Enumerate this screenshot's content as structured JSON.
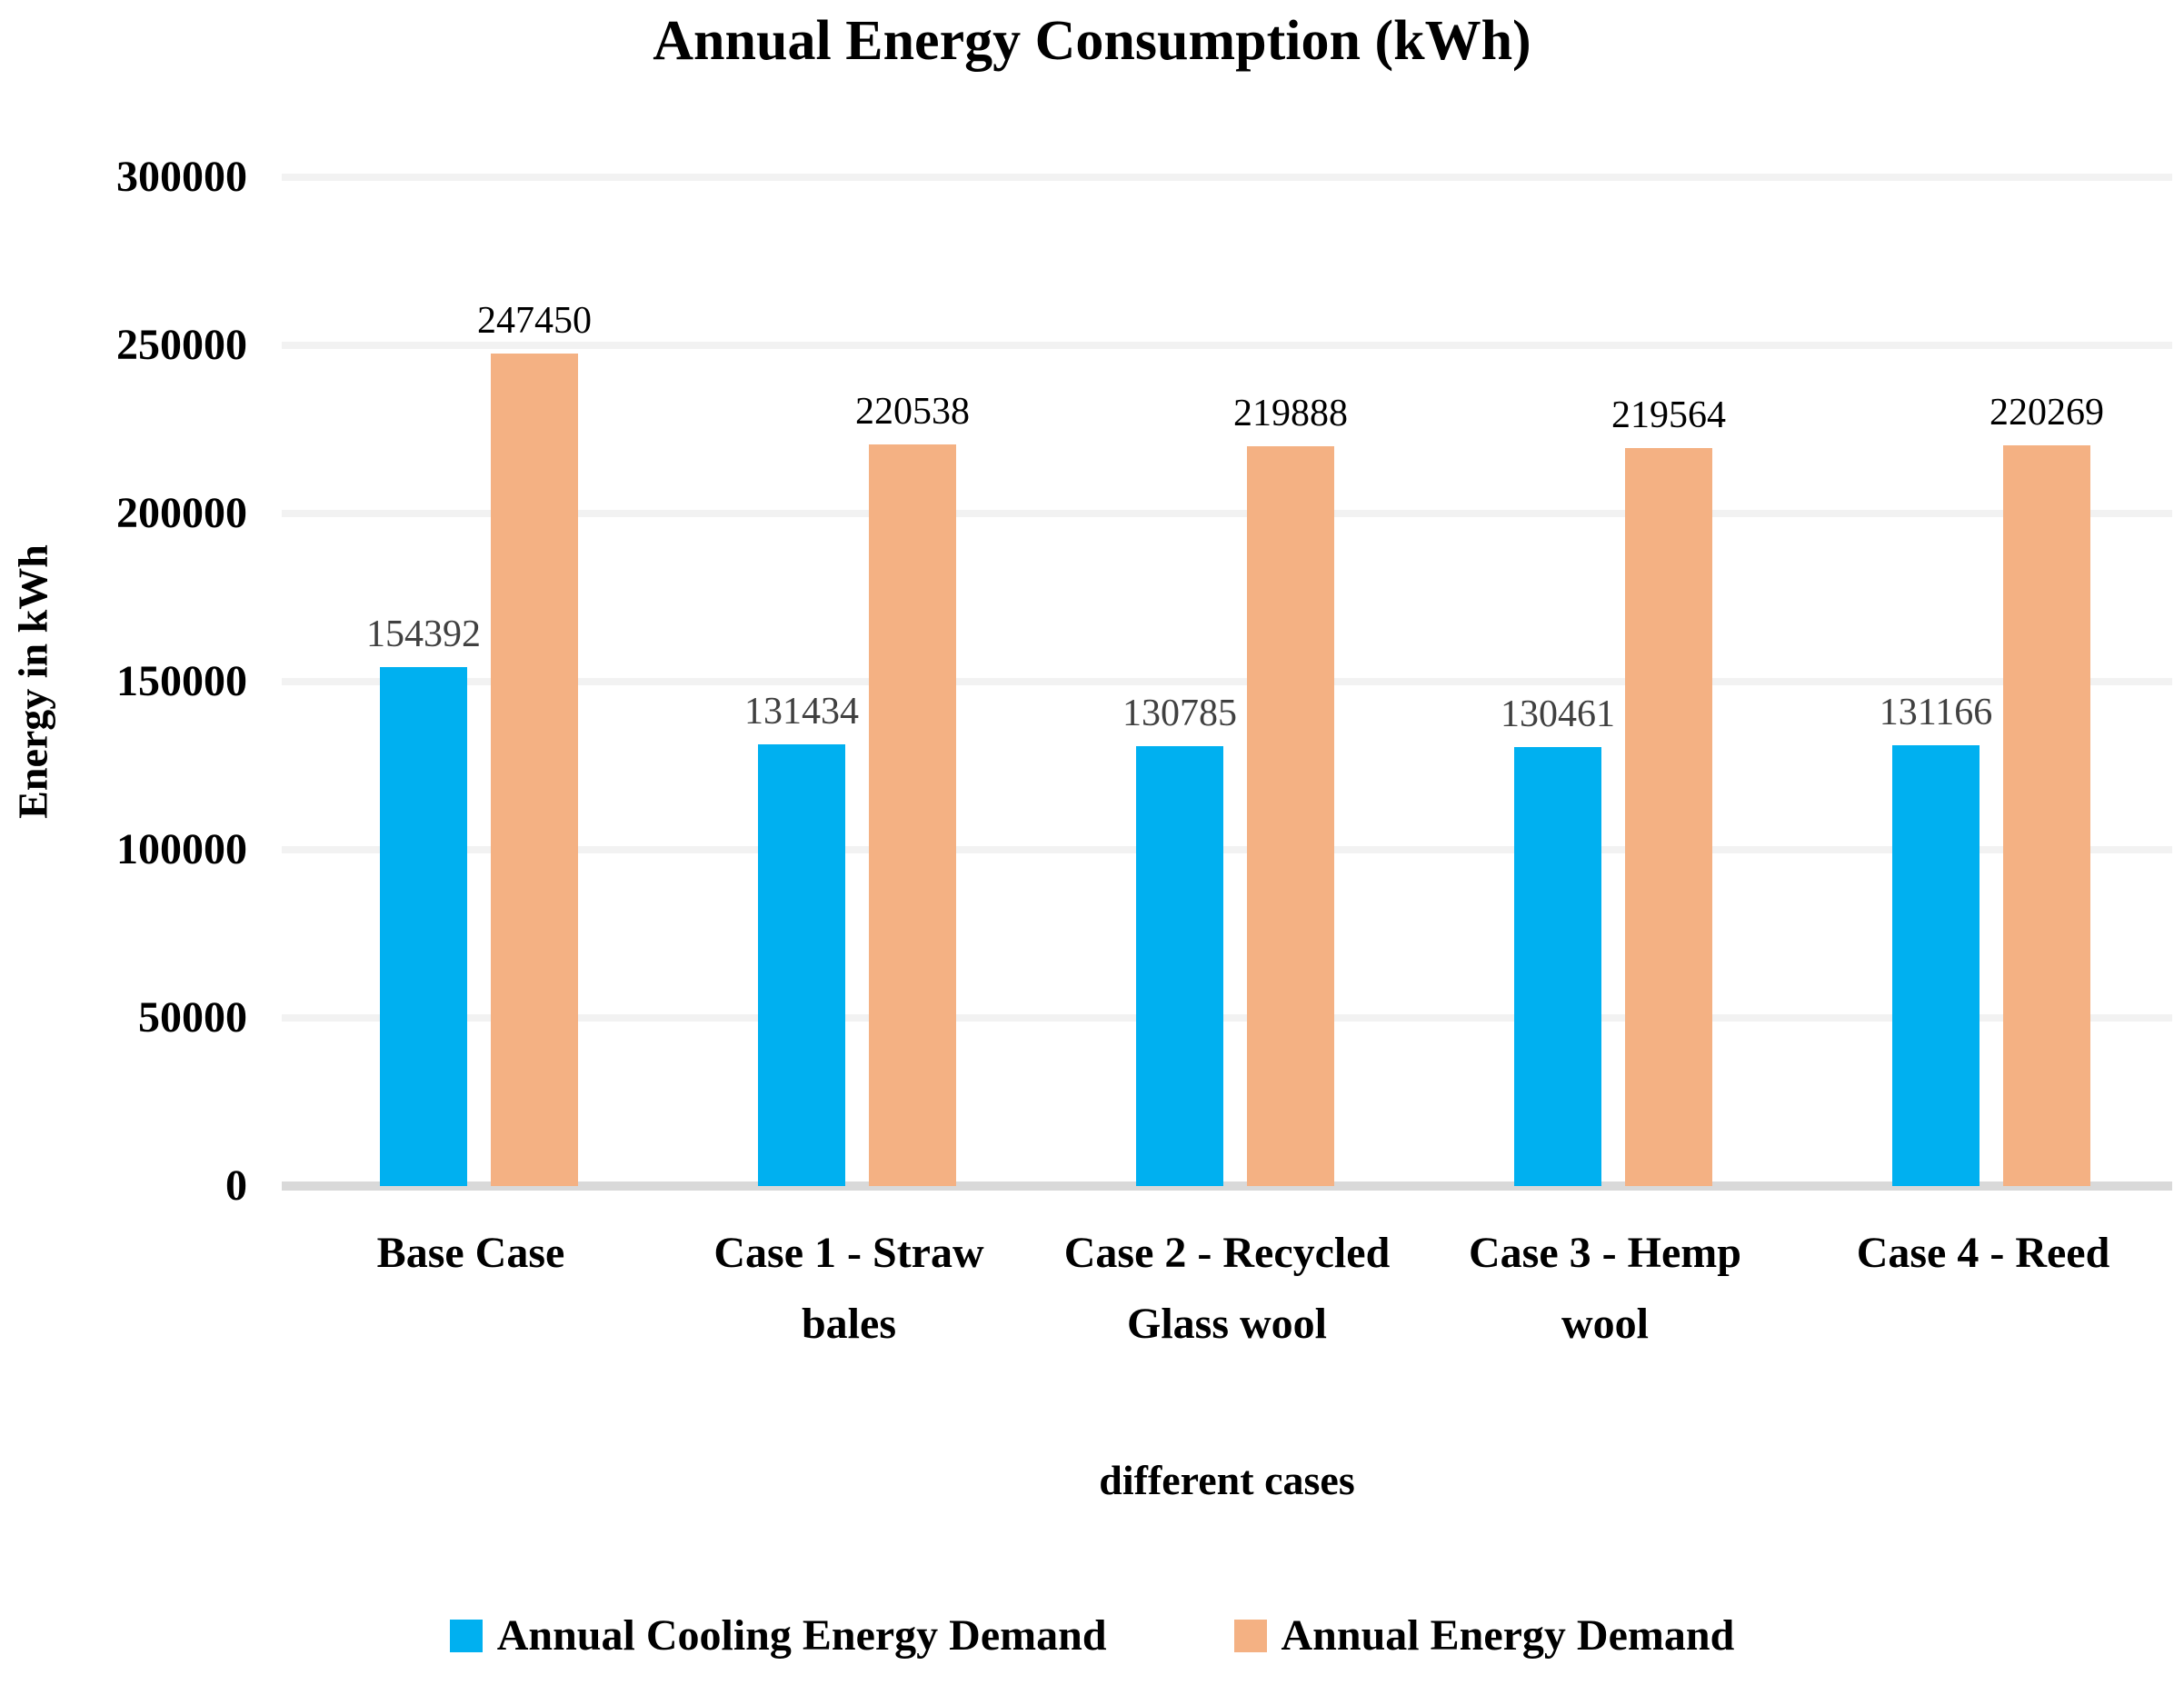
{
  "title": "Annual Energy Consumption (kWh)",
  "chart_data": {
    "type": "bar",
    "title": "Annual Energy Consumption (kWh)",
    "xlabel": "different cases",
    "ylabel": "Energy in kWh",
    "ylim": [
      0,
      300000
    ],
    "ytick_step": 50000,
    "yticks": [
      0,
      50000,
      100000,
      150000,
      200000,
      250000,
      300000
    ],
    "grid": true,
    "legend_position": "bottom",
    "categories": [
      "Base Case",
      "Case 1 - Straw bales",
      "Case 2 - Recycled Glass wool",
      "Case 3 - Hemp wool",
      "Case 4 - Reed"
    ],
    "series": [
      {
        "name": "Annual Cooling Energy Demand",
        "color": "#00B0F0",
        "label_color": "#404040",
        "values": [
          154392,
          131434,
          130785,
          130461,
          131166
        ]
      },
      {
        "name": "Annual Energy Demand",
        "color": "#F4B183",
        "label_color": "#000000",
        "values": [
          247450,
          220538,
          219888,
          219564,
          220269
        ]
      }
    ]
  },
  "colors": {
    "gridline": "#F2F2F2",
    "axis_line": "#D9D9D9",
    "background": "#FFFFFF"
  }
}
